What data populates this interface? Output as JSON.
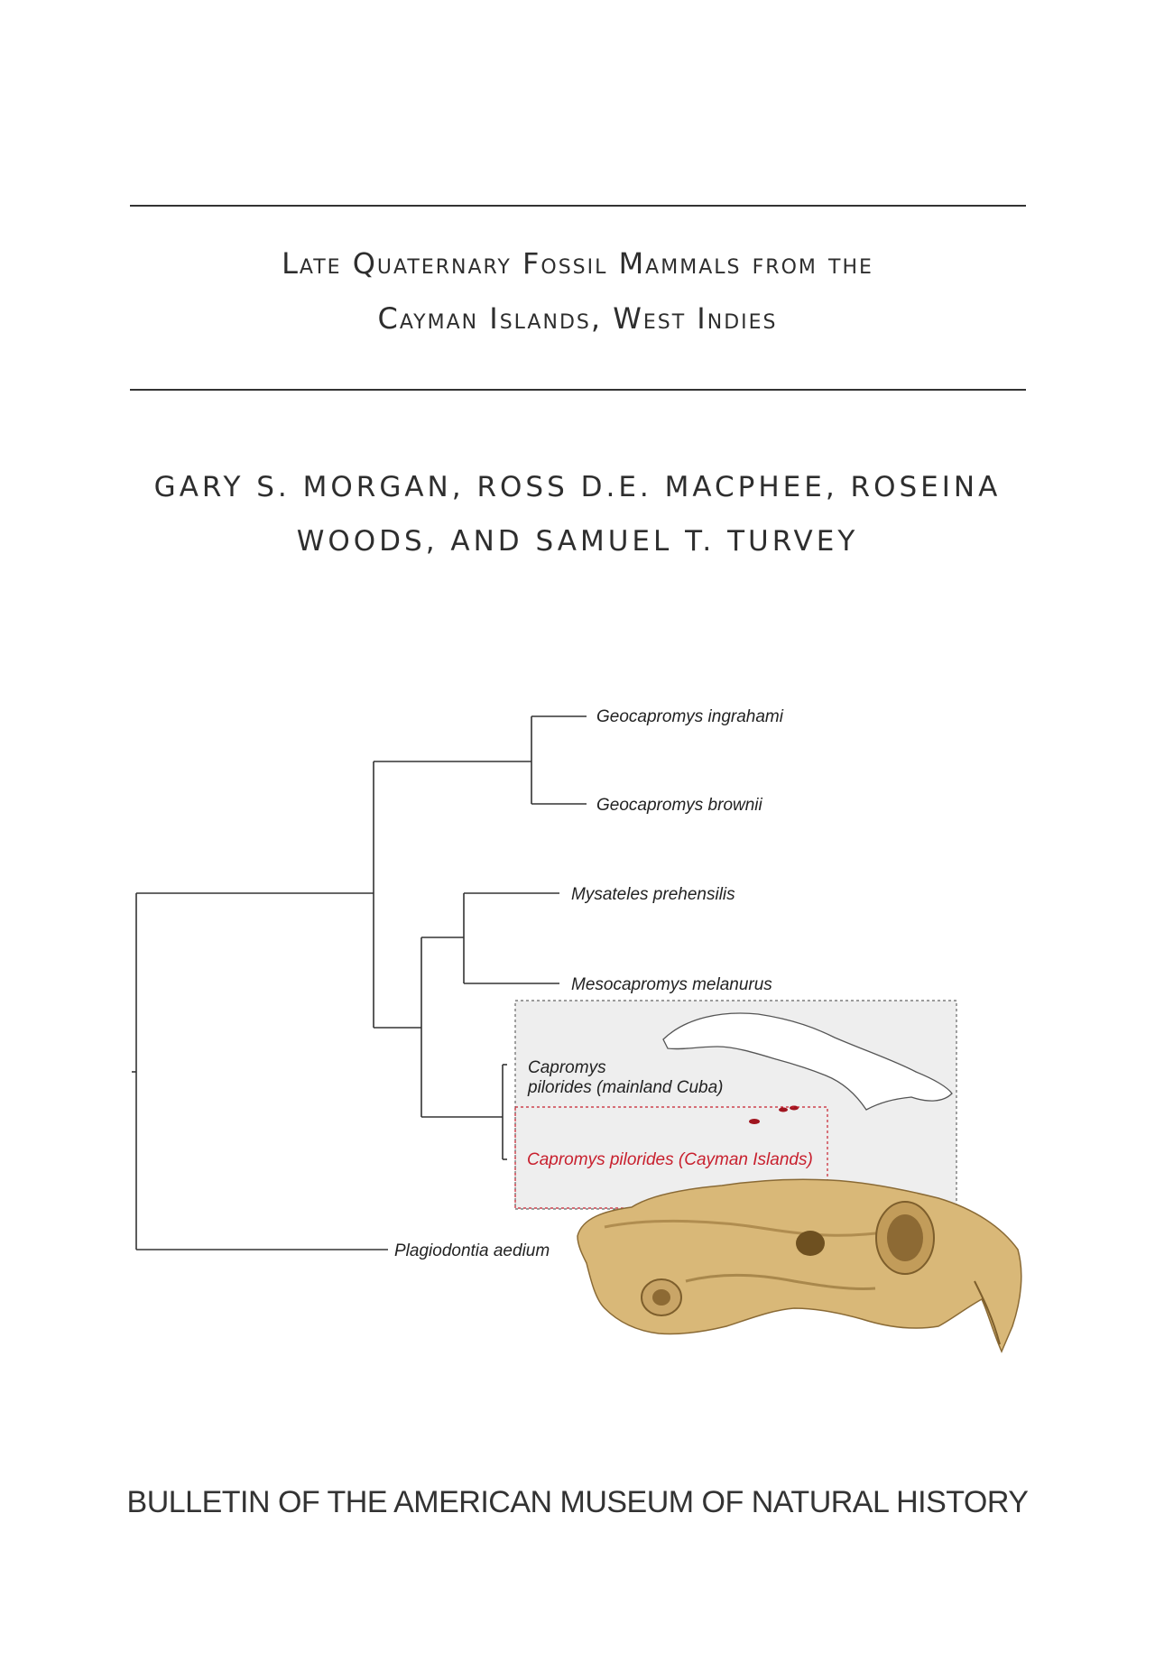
{
  "title": {
    "line1": "Late Quaternary Fossil Mammals from the",
    "line2": "Cayman Islands, West Indies"
  },
  "authors": {
    "line1": "GARY S. MORGAN, ROSS D.E. MACPHEE, ROSEINA",
    "line2": "WOODS, AND SAMUEL T. TURVEY"
  },
  "tree": {
    "taxa": [
      "Geocapromys ingrahami",
      "Geocapromys brownii",
      "Mysateles prehensilis",
      "Mesocapromys melanurus",
      "Capromys",
      "pilorides (mainland Cuba)",
      "Capromys pilorides (Cayman Islands)",
      "Plagiodontia aedium"
    ]
  },
  "colors": {
    "highlight": "#c8202e",
    "skull": "#d9b878",
    "inset_bg": "#eeeeee"
  },
  "series": "BULLETIN OF THE AMERICAN MUSEUM OF NATURAL HISTORY"
}
